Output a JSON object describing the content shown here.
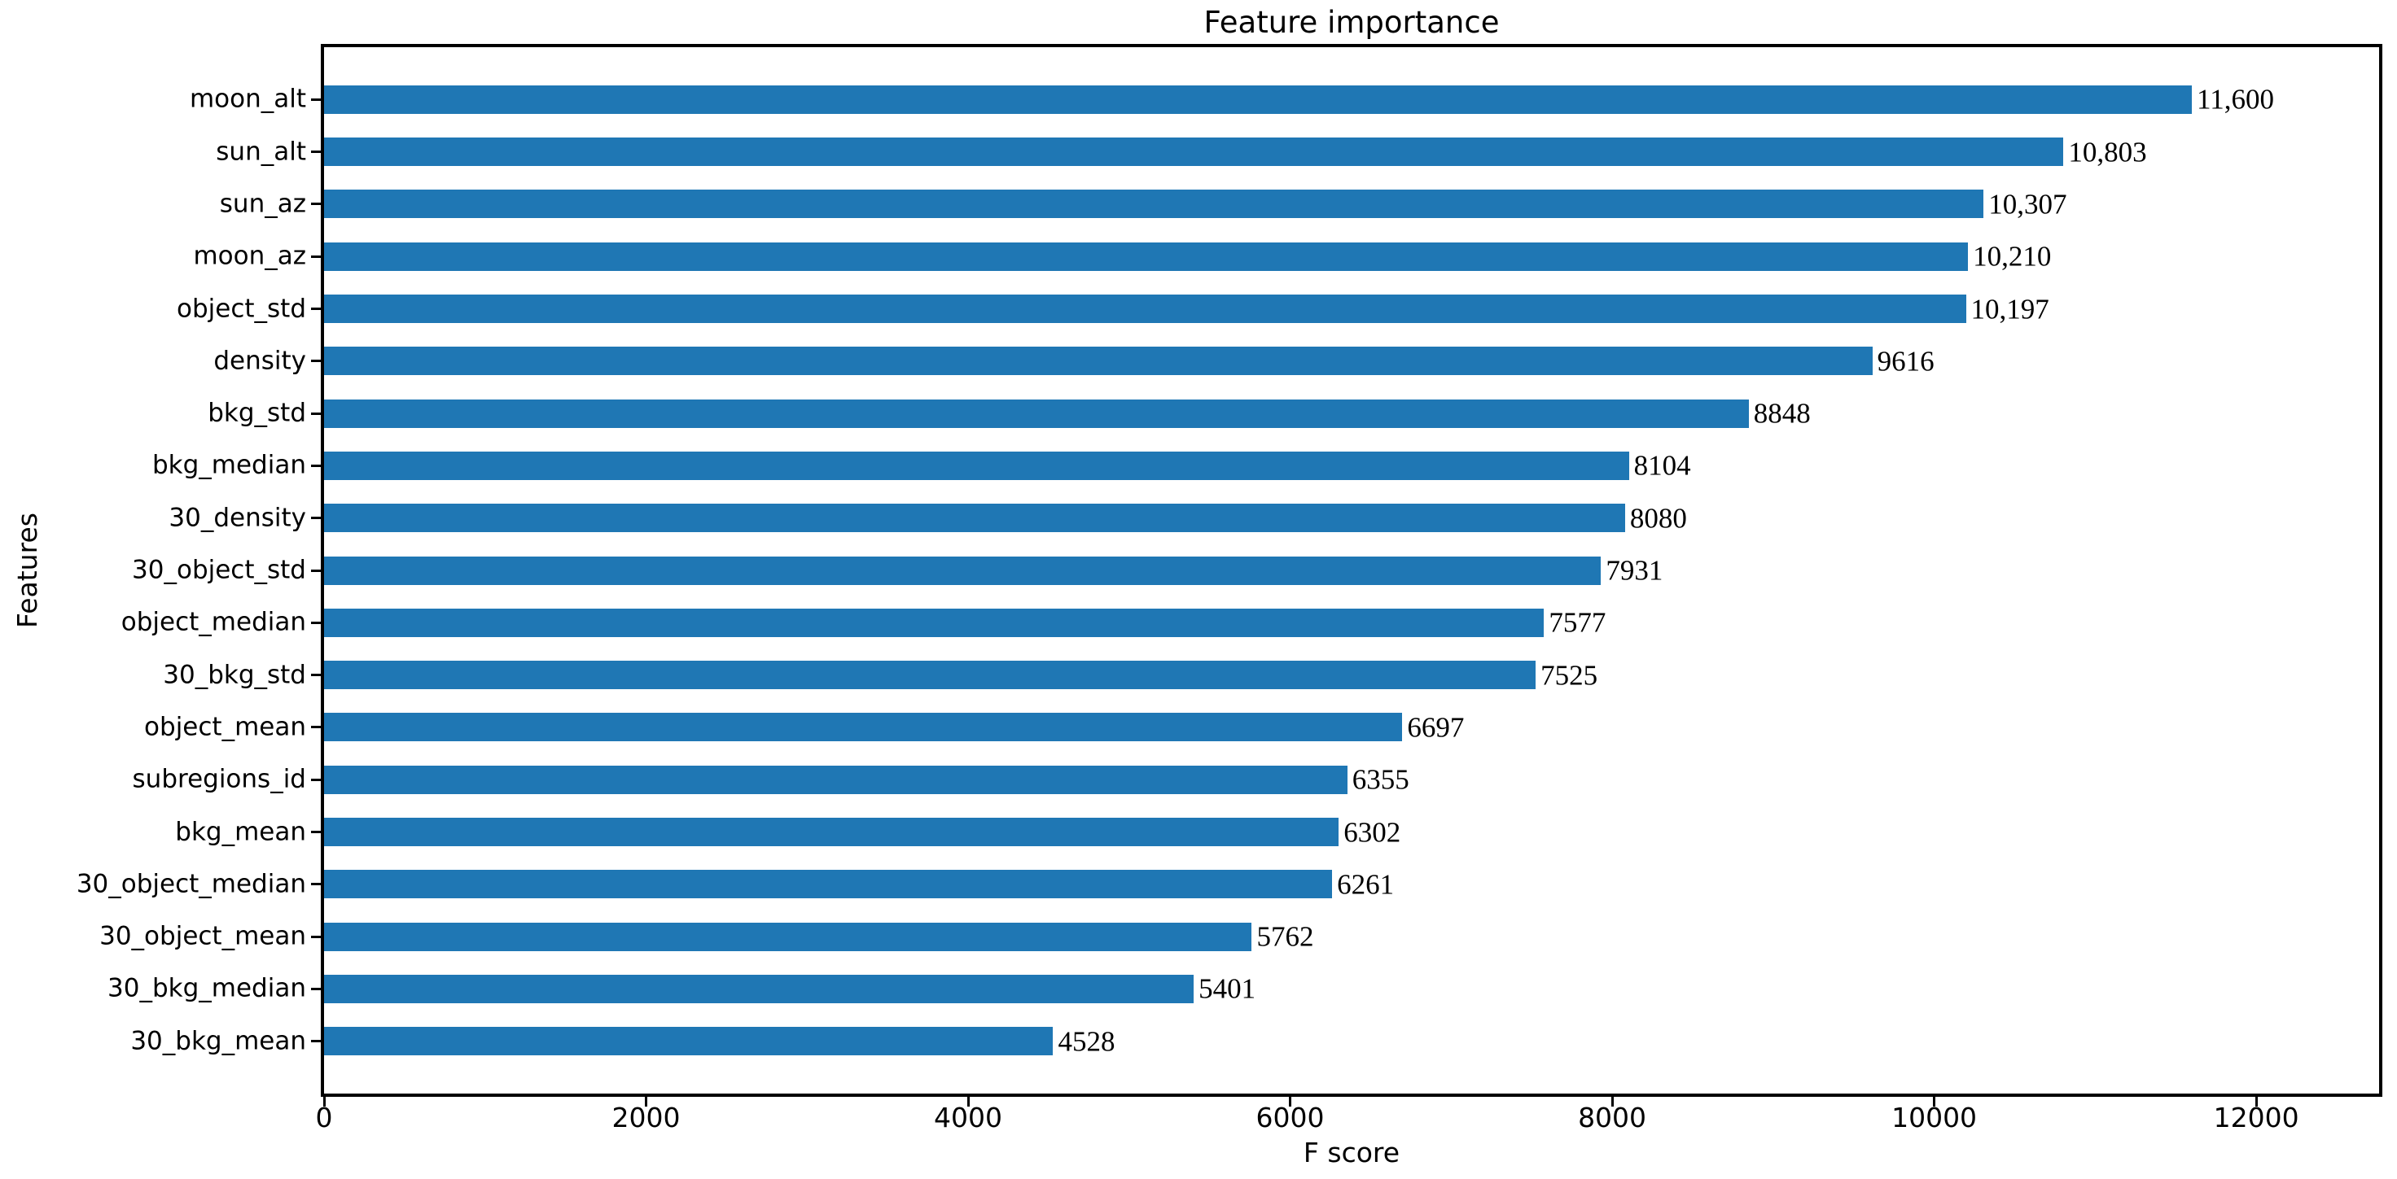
{
  "chart_data": {
    "type": "bar",
    "orientation": "horizontal",
    "title": "Feature importance",
    "xlabel": "F score",
    "ylabel": "Features",
    "categories": [
      "moon_alt",
      "sun_alt",
      "sun_az",
      "moon_az",
      "object_std",
      "density",
      "bkg_std",
      "bkg_median",
      "30_density",
      "30_object_std",
      "object_median",
      "30_bkg_std",
      "object_mean",
      "subregions_id",
      "bkg_mean",
      "30_object_median",
      "30_object_mean",
      "30_bkg_median",
      "30_bkg_mean"
    ],
    "values": [
      11600,
      10803,
      10307,
      10210,
      10197,
      9616,
      8848,
      8104,
      8080,
      7931,
      7577,
      7525,
      6697,
      6355,
      6302,
      6261,
      5762,
      5401,
      4528
    ],
    "value_labels": [
      "11,600",
      "10,803",
      "10,307",
      "10,210",
      "10,197",
      "9616",
      "8848",
      "8104",
      "8080",
      "7931",
      "7577",
      "7525",
      "6697",
      "6355",
      "6302",
      "6261",
      "5762",
      "5401",
      "4528"
    ],
    "xticks": [
      0,
      2000,
      4000,
      6000,
      8000,
      10000,
      12000
    ],
    "xtick_labels": [
      "0",
      "2000",
      "4000",
      "6000",
      "8000",
      "10000",
      "12000"
    ],
    "xlim": [
      0,
      12763
    ],
    "bar_color": "#1f77b4",
    "axis_color": "#000000",
    "grid": false,
    "legend_position": "none"
  }
}
